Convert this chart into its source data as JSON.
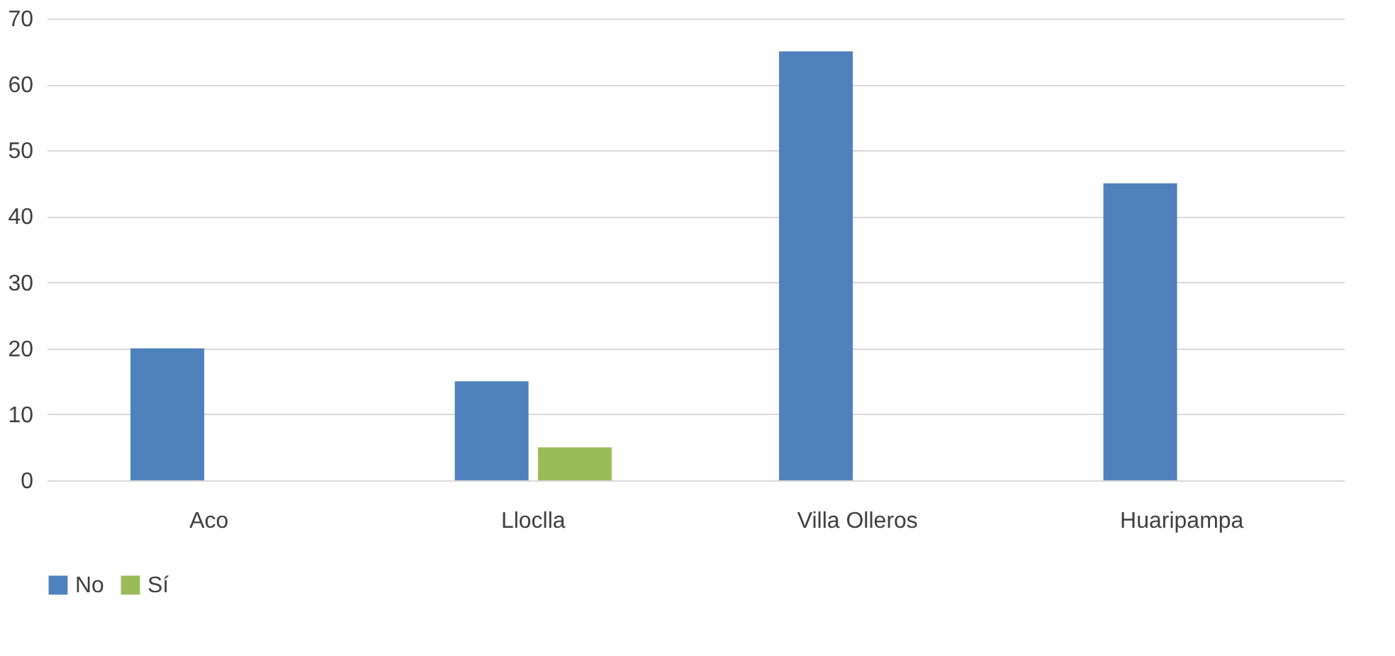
{
  "chart_data": {
    "type": "bar",
    "categories": [
      "Aco",
      "Lloclla",
      "Villa Olleros",
      "Huaripampa"
    ],
    "series": [
      {
        "name": "No",
        "color": "#4f81bd",
        "values": [
          20,
          15,
          65,
          45
        ]
      },
      {
        "name": "Sí",
        "color": "#9bbb59",
        "values": [
          0,
          5,
          0,
          0
        ]
      }
    ],
    "ylim": [
      0,
      70
    ],
    "yticks": [
      0,
      10,
      20,
      30,
      40,
      50,
      60,
      70
    ],
    "grid": "y",
    "legend": "bottom"
  }
}
